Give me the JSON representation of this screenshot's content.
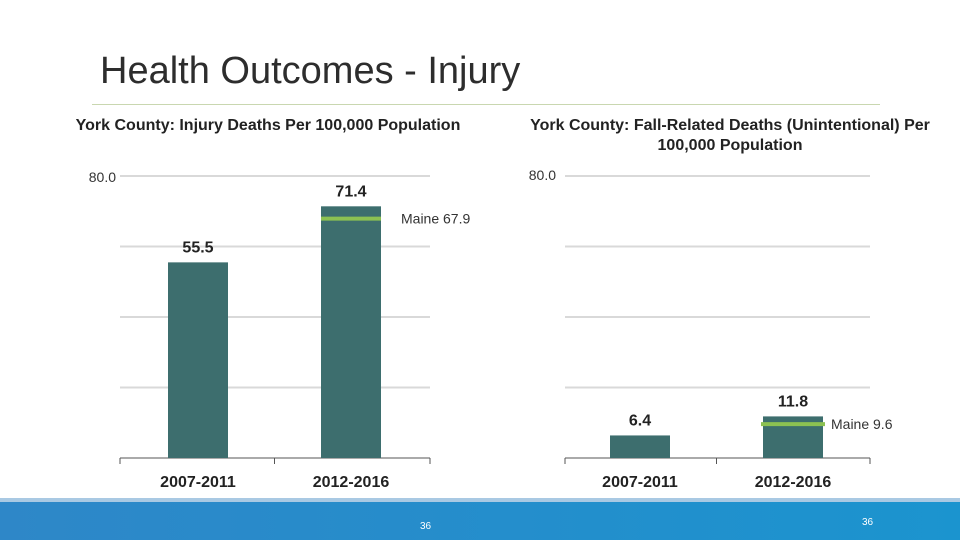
{
  "slide": {
    "title": "Health Outcomes - Injury",
    "page_number_left": "36",
    "page_number_right": "36"
  },
  "colors": {
    "bar": "#3d6e6e",
    "benchmark": "#8cc152",
    "grid": "#d9d9d9",
    "footer": "#1b94cf"
  },
  "chart_data": [
    {
      "type": "bar",
      "title": "York County: Injury Deaths Per 100,000 Population",
      "categories": [
        "2007-2011",
        "2012-2016"
      ],
      "values": [
        55.5,
        71.4
      ],
      "value_labels": [
        "55.5",
        "71.4"
      ],
      "ylim": [
        0,
        80
      ],
      "y_tick_label": "80.0",
      "grid": true,
      "benchmark": {
        "label": "Maine 67.9",
        "value": 67.9
      }
    },
    {
      "type": "bar",
      "title": "York County: Fall-Related Deaths (Unintentional) Per 100,000 Population",
      "categories": [
        "2007-2011",
        "2012-2016"
      ],
      "values": [
        6.4,
        11.8
      ],
      "value_labels": [
        "6.4",
        "11.8"
      ],
      "ylim": [
        0,
        80
      ],
      "y_tick_label": "80.0",
      "grid": true,
      "benchmark": {
        "label": "Maine 9.6",
        "value": 9.6
      }
    }
  ]
}
